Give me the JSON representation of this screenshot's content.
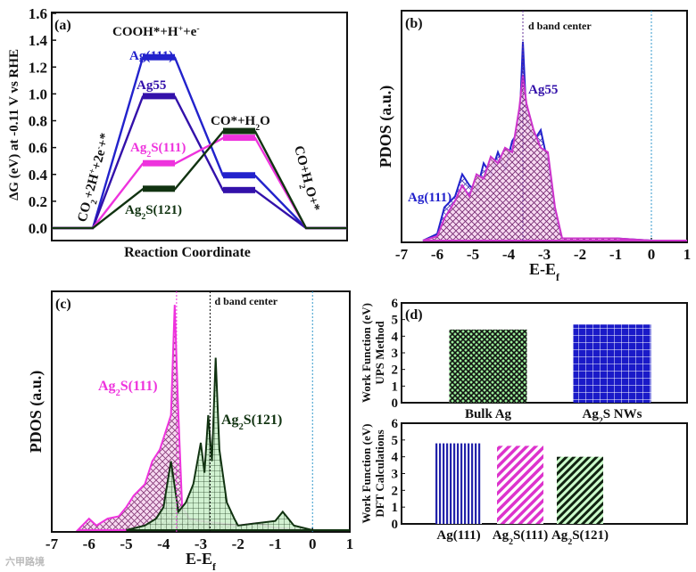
{
  "colors": {
    "ag111": "#2222cc",
    "ag55": "#3311aa",
    "ag2s111": "#ee33dd",
    "ag2s121": "#113311",
    "fermi": "#3399cc"
  },
  "chart_data": [
    {
      "panel": "(a)",
      "type": "line",
      "title": "",
      "xlabel": "Reaction Coordinate",
      "ylabel": "ΔG (eV) at -0.11 V vs RHE",
      "ylim": [
        -0.1,
        1.6
      ],
      "yticks": [
        "0.0",
        "0.2",
        "0.4",
        "0.6",
        "0.8",
        "1.0",
        "1.2",
        "1.4",
        "1.6"
      ],
      "states": [
        "CO2+2H++2e-+*",
        "COOH*+H++e-",
        "CO*+H2O",
        "CO+H2O+*"
      ],
      "state_labels": {
        "s0": "CO",
        "s0b": "2",
        "s0c": "+2H",
        "s0d": "+",
        "s0e": "+2e",
        "s0f": "-",
        "s0g": "+*",
        "s1": "COOH*+H",
        "s1b": "+",
        "s1c": "+e",
        "s1d": "-",
        "s2": "CO*+H",
        "s2b": "2",
        "s2c": "O",
        "s3": "CO+H",
        "s3b": "2",
        "s3c": "O+*"
      },
      "series": [
        {
          "name": "Ag(111)",
          "label": "Ag(111)",
          "values": [
            0,
            1.27,
            0.39,
            0
          ]
        },
        {
          "name": "Ag55",
          "label": "Ag55",
          "values": [
            0,
            0.98,
            0.28,
            0
          ]
        },
        {
          "name": "Ag2S(111)",
          "label": "Ag",
          "sub": "2",
          "rest": "S(111)",
          "values": [
            0,
            0.48,
            0.67,
            0
          ]
        },
        {
          "name": "Ag2S(121)",
          "label": "Ag",
          "sub": "2",
          "rest": "S(121)",
          "values": [
            0,
            0.29,
            0.72,
            0
          ]
        }
      ]
    },
    {
      "panel": "(b)",
      "type": "area",
      "xlabel": "E-E",
      "xlabel_sub": "f",
      "ylabel": "PDOS (a.u.)",
      "xlim": [
        -7,
        1
      ],
      "xticks": [
        "-7",
        "-6",
        "-5",
        "-4",
        "-3",
        "-2",
        "-1",
        "0",
        "1"
      ],
      "annotation": "d band center",
      "d_band_center": -3.6,
      "series": [
        {
          "name": "Ag(111)",
          "x": [
            -6.4,
            -6,
            -5.8,
            -5.5,
            -5.3,
            -5.1,
            -4.9,
            -4.7,
            -4.5,
            -4.3,
            -4.1,
            -3.9,
            -3.7,
            -3.6,
            -3.5,
            -3.3,
            -3.1,
            -2.9,
            -2.7,
            -2.5,
            -2,
            -1,
            0,
            1
          ],
          "y": [
            0,
            0.03,
            0.15,
            0.2,
            0.3,
            0.25,
            0.22,
            0.35,
            0.3,
            0.4,
            0.32,
            0.45,
            0.5,
            0.9,
            0.55,
            0.45,
            0.5,
            0.35,
            0.1,
            0.01,
            0.01,
            0.01,
            0,
            0
          ]
        },
        {
          "name": "Ag55",
          "x": [
            -6.4,
            -6,
            -5.8,
            -5.5,
            -5.3,
            -5.1,
            -4.9,
            -4.7,
            -4.5,
            -4.3,
            -4.1,
            -3.9,
            -3.7,
            -3.6,
            -3.5,
            -3.3,
            -3.1,
            -2.9,
            -2.7,
            -2.5,
            -2,
            -1,
            0,
            1
          ],
          "y": [
            0,
            0.02,
            0.1,
            0.18,
            0.25,
            0.2,
            0.3,
            0.28,
            0.38,
            0.35,
            0.42,
            0.4,
            0.6,
            0.75,
            0.62,
            0.5,
            0.42,
            0.4,
            0.15,
            0.01,
            0.01,
            0.01,
            0,
            0
          ]
        }
      ],
      "series_labels": [
        "Ag(111)",
        "Ag55"
      ]
    },
    {
      "panel": "(c)",
      "type": "area",
      "xlabel": "E-E",
      "xlabel_sub": "f",
      "ylabel": "PDOS (a.u.)",
      "xlim": [
        -7,
        1
      ],
      "xticks": [
        "-7",
        "-6",
        "-5",
        "-4",
        "-3",
        "-2",
        "-1",
        "0",
        "1"
      ],
      "annotation": "d band center",
      "d_band_centers": [
        -3.65,
        -2.75
      ],
      "series": [
        {
          "name": "Ag2S(111)",
          "label": "Ag",
          "sub": "2",
          "rest": "S(111)",
          "x": [
            -6.3,
            -6,
            -5.8,
            -5.5,
            -5.2,
            -5,
            -4.8,
            -4.5,
            -4.3,
            -4.1,
            -3.9,
            -3.8,
            -3.7,
            -3.6,
            -3.5,
            -3.3,
            -3,
            -2.5,
            -2,
            -1.5,
            -1,
            0,
            1
          ],
          "y": [
            0,
            0.05,
            0.02,
            0.05,
            0.06,
            0.1,
            0.15,
            0.2,
            0.3,
            0.35,
            0.45,
            0.5,
            0.98,
            0.5,
            0.1,
            0.05,
            0.04,
            0.03,
            0.02,
            0.03,
            0.01,
            0,
            0
          ]
        },
        {
          "name": "Ag2S(121)",
          "label": "Ag",
          "sub": "2",
          "rest": "S(121)",
          "x": [
            -5,
            -4.5,
            -4.2,
            -4,
            -3.8,
            -3.6,
            -3.4,
            -3.2,
            -3,
            -2.9,
            -2.8,
            -2.7,
            -2.6,
            -2.5,
            -2.3,
            -2.1,
            -2,
            -1.5,
            -1,
            -0.8,
            -0.5,
            0,
            1
          ],
          "y": [
            0,
            0.02,
            0.05,
            0.1,
            0.3,
            0.08,
            0.12,
            0.2,
            0.38,
            0.25,
            0.5,
            0.3,
            0.75,
            0.35,
            0.12,
            0.05,
            0.02,
            0.03,
            0.04,
            0.08,
            0.02,
            0,
            0
          ]
        }
      ]
    },
    {
      "panel": "(d)",
      "type": "bar",
      "subplots": [
        {
          "ylabel": "Work Function (eV)",
          "ylabel2": "UPS Method",
          "ylim": [
            0,
            6
          ],
          "yticks": [
            "0",
            "1",
            "2",
            "3",
            "4",
            "5",
            "6"
          ],
          "categories": [
            "Bulk Ag",
            "Ag2S NWs"
          ],
          "cat_labels": [
            [
              "Bulk Ag",
              "",
              ""
            ],
            [
              "Ag",
              "2",
              "S NWs"
            ]
          ],
          "values": [
            4.4,
            4.7
          ]
        },
        {
          "ylabel": "Work Function (eV)",
          "ylabel2": "DFT Calculations",
          "ylim": [
            0,
            6
          ],
          "yticks": [
            "0",
            "1",
            "2",
            "3",
            "4",
            "5",
            "6"
          ],
          "categories": [
            "Ag(111)",
            "Ag2S(111)",
            "Ag2S(121)"
          ],
          "cat_labels": [
            [
              "Ag(111)",
              "",
              ""
            ],
            [
              "Ag",
              "2",
              "S(111)"
            ],
            [
              "Ag",
              "2",
              "S(121)"
            ]
          ],
          "values": [
            4.8,
            4.65,
            4.0
          ]
        }
      ]
    }
  ],
  "watermark": "六甲路境"
}
